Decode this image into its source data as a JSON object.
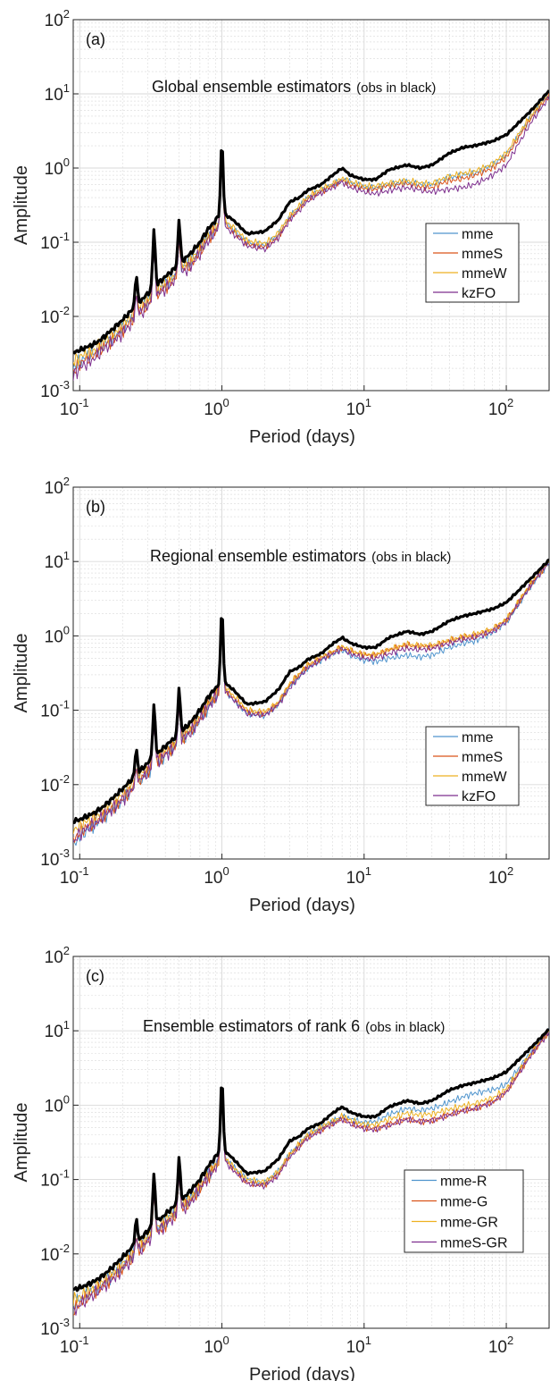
{
  "colors": {
    "obs": "#000000",
    "series1": "#4f94cd",
    "series2": "#d95319",
    "series3": "#edb120",
    "series4": "#7e2f8e",
    "grid": "#d9d9d9"
  },
  "chart_data": [
    {
      "type": "line",
      "tag": "(a)",
      "title": "Global ensemble estimators",
      "title_note": "(obs in black)",
      "xlabel": "Period (days)",
      "ylabel": "Amplitude",
      "xscale": "log",
      "yscale": "log",
      "xlim": [
        0.09,
        200
      ],
      "ylim": [
        0.001,
        100
      ],
      "x_ticks": [
        {
          "base": "10",
          "exp": "-1"
        },
        {
          "base": "10",
          "exp": "0"
        },
        {
          "base": "10",
          "exp": "1"
        },
        {
          "base": "10",
          "exp": "2"
        }
      ],
      "y_ticks": [
        {
          "base": "10",
          "exp": "-3"
        },
        {
          "base": "10",
          "exp": "-2"
        },
        {
          "base": "10",
          "exp": "-1"
        },
        {
          "base": "10",
          "exp": "0"
        },
        {
          "base": "10",
          "exp": "1"
        },
        {
          "base": "10",
          "exp": "2"
        }
      ],
      "grid": true,
      "legend": "right",
      "obs": {
        "x": [
          0.09,
          0.1,
          0.125,
          0.143,
          0.167,
          0.2,
          0.25,
          0.333,
          0.5,
          0.6,
          0.7,
          0.8,
          1.0,
          1.2,
          1.5,
          2,
          2.5,
          3,
          3.5,
          4,
          5,
          6,
          7,
          8,
          10,
          12,
          15,
          20,
          25,
          30,
          40,
          50,
          60,
          80,
          100,
          150,
          200
        ],
        "y": [
          0.0033,
          0.0035,
          0.0042,
          0.005,
          0.0065,
          0.009,
          0.014,
          0.025,
          0.05,
          0.07,
          0.1,
          0.15,
          0.25,
          0.2,
          0.13,
          0.14,
          0.2,
          0.35,
          0.4,
          0.5,
          0.6,
          0.8,
          1.0,
          0.8,
          0.7,
          0.7,
          0.95,
          1.1,
          1.0,
          1.1,
          1.6,
          1.9,
          2.0,
          2.3,
          2.8,
          6.0,
          11.0
        ]
      },
      "obs_peaks": [
        {
          "x": 0.25,
          "y": 0.035
        },
        {
          "x": 0.333,
          "y": 0.15
        },
        {
          "x": 0.5,
          "y": 0.2
        },
        {
          "x": 1.0,
          "y": 2.3
        }
      ],
      "series": [
        {
          "name": "mme",
          "color_key": "series1",
          "y": [
            0.002,
            0.0025,
            0.0032,
            0.004,
            0.005,
            0.007,
            0.011,
            0.02,
            0.04,
            0.055,
            0.08,
            0.12,
            0.2,
            0.15,
            0.1,
            0.09,
            0.13,
            0.22,
            0.3,
            0.4,
            0.5,
            0.6,
            0.7,
            0.65,
            0.55,
            0.55,
            0.6,
            0.65,
            0.6,
            0.6,
            0.75,
            0.8,
            0.85,
            1.1,
            1.5,
            5.0,
            10.0
          ]
        },
        {
          "name": "mmeS",
          "color_key": "series2",
          "y": [
            0.0018,
            0.0023,
            0.003,
            0.0037,
            0.0047,
            0.0065,
            0.01,
            0.018,
            0.037,
            0.05,
            0.075,
            0.11,
            0.19,
            0.14,
            0.095,
            0.085,
            0.12,
            0.21,
            0.28,
            0.38,
            0.48,
            0.58,
            0.68,
            0.6,
            0.52,
            0.52,
            0.58,
            0.62,
            0.55,
            0.55,
            0.68,
            0.72,
            0.8,
            1.0,
            1.4,
            4.8,
            9.5
          ]
        },
        {
          "name": "mmeW",
          "color_key": "series3",
          "y": [
            0.0025,
            0.0028,
            0.0035,
            0.0043,
            0.0055,
            0.0075,
            0.012,
            0.021,
            0.042,
            0.058,
            0.085,
            0.125,
            0.21,
            0.16,
            0.105,
            0.095,
            0.135,
            0.23,
            0.31,
            0.41,
            0.52,
            0.62,
            0.72,
            0.66,
            0.57,
            0.57,
            0.63,
            0.68,
            0.62,
            0.62,
            0.78,
            0.85,
            0.9,
            1.15,
            1.6,
            5.2,
            10.5
          ]
        },
        {
          "name": "kzFO",
          "color_key": "series4",
          "y": [
            0.0016,
            0.002,
            0.0027,
            0.0034,
            0.0044,
            0.006,
            0.0095,
            0.017,
            0.035,
            0.048,
            0.07,
            0.105,
            0.18,
            0.13,
            0.09,
            0.08,
            0.115,
            0.2,
            0.27,
            0.36,
            0.46,
            0.55,
            0.65,
            0.55,
            0.48,
            0.45,
            0.5,
            0.55,
            0.5,
            0.48,
            0.52,
            0.55,
            0.6,
            0.8,
            1.1,
            4.2,
            9.0
          ]
        }
      ]
    },
    {
      "type": "line",
      "tag": "(b)",
      "title": "Regional ensemble estimators",
      "title_note": "(obs in black)",
      "xlabel": "Period (days)",
      "ylabel": "Amplitude",
      "xscale": "log",
      "yscale": "log",
      "xlim": [
        0.09,
        200
      ],
      "ylim": [
        0.001,
        100
      ],
      "x_ticks": [
        {
          "base": "10",
          "exp": "-1"
        },
        {
          "base": "10",
          "exp": "0"
        },
        {
          "base": "10",
          "exp": "1"
        },
        {
          "base": "10",
          "exp": "2"
        }
      ],
      "y_ticks": [
        {
          "base": "10",
          "exp": "-3"
        },
        {
          "base": "10",
          "exp": "-2"
        },
        {
          "base": "10",
          "exp": "-1"
        },
        {
          "base": "10",
          "exp": "0"
        },
        {
          "base": "10",
          "exp": "1"
        },
        {
          "base": "10",
          "exp": "2"
        }
      ],
      "grid": true,
      "legend": "lower-right",
      "obs": {
        "x": [
          0.09,
          0.1,
          0.125,
          0.143,
          0.167,
          0.2,
          0.25,
          0.333,
          0.5,
          0.6,
          0.7,
          0.8,
          1.0,
          1.2,
          1.5,
          2,
          2.5,
          3,
          3.5,
          4,
          5,
          6,
          7,
          8,
          10,
          12,
          15,
          20,
          25,
          30,
          40,
          50,
          60,
          80,
          100,
          150,
          200
        ],
        "y": [
          0.0032,
          0.0034,
          0.0041,
          0.0049,
          0.0063,
          0.0088,
          0.0135,
          0.024,
          0.048,
          0.068,
          0.1,
          0.15,
          0.25,
          0.19,
          0.12,
          0.13,
          0.19,
          0.33,
          0.38,
          0.48,
          0.58,
          0.78,
          0.95,
          0.8,
          0.7,
          0.7,
          0.95,
          1.15,
          1.05,
          1.15,
          1.6,
          1.85,
          2.0,
          2.3,
          2.8,
          6.0,
          10.5
        ]
      },
      "obs_peaks": [
        {
          "x": 0.25,
          "y": 0.03
        },
        {
          "x": 0.333,
          "y": 0.12
        },
        {
          "x": 0.5,
          "y": 0.2
        },
        {
          "x": 1.0,
          "y": 2.3
        }
      ],
      "series": [
        {
          "name": "mme",
          "color_key": "series1",
          "y": [
            0.0015,
            0.002,
            0.0028,
            0.0035,
            0.0045,
            0.0062,
            0.0098,
            0.018,
            0.037,
            0.05,
            0.075,
            0.11,
            0.2,
            0.14,
            0.09,
            0.085,
            0.12,
            0.21,
            0.28,
            0.37,
            0.47,
            0.57,
            0.65,
            0.55,
            0.47,
            0.45,
            0.5,
            0.55,
            0.52,
            0.55,
            0.7,
            0.8,
            0.85,
            1.1,
            1.5,
            4.8,
            9.5
          ]
        },
        {
          "name": "mmeS",
          "color_key": "series2",
          "y": [
            0.0018,
            0.0023,
            0.003,
            0.0037,
            0.0047,
            0.0065,
            0.01,
            0.019,
            0.038,
            0.052,
            0.078,
            0.115,
            0.21,
            0.15,
            0.095,
            0.09,
            0.125,
            0.22,
            0.3,
            0.39,
            0.5,
            0.6,
            0.7,
            0.62,
            0.55,
            0.55,
            0.65,
            0.75,
            0.72,
            0.72,
            0.85,
            0.95,
            1.0,
            1.2,
            1.6,
            5.0,
            10.0
          ]
        },
        {
          "name": "mmeW",
          "color_key": "series3",
          "y": [
            0.0025,
            0.0028,
            0.0035,
            0.0043,
            0.0055,
            0.0075,
            0.012,
            0.021,
            0.042,
            0.058,
            0.085,
            0.125,
            0.22,
            0.16,
            0.1,
            0.095,
            0.13,
            0.23,
            0.31,
            0.41,
            0.52,
            0.62,
            0.72,
            0.64,
            0.56,
            0.56,
            0.66,
            0.77,
            0.74,
            0.75,
            0.88,
            0.98,
            1.05,
            1.25,
            1.65,
            5.2,
            10.2
          ]
        },
        {
          "name": "kzFO",
          "color_key": "series4",
          "y": [
            0.0017,
            0.0022,
            0.0029,
            0.0036,
            0.0046,
            0.0063,
            0.0098,
            0.018,
            0.036,
            0.05,
            0.075,
            0.11,
            0.2,
            0.14,
            0.09,
            0.085,
            0.12,
            0.2,
            0.28,
            0.37,
            0.48,
            0.58,
            0.67,
            0.58,
            0.5,
            0.5,
            0.58,
            0.68,
            0.65,
            0.68,
            0.8,
            0.9,
            0.95,
            1.15,
            1.55,
            4.9,
            9.8
          ]
        }
      ]
    },
    {
      "type": "line",
      "tag": "(c)",
      "title": "Ensemble estimators of rank 6",
      "title_note": "(obs in black)",
      "xlabel": "Period (days)",
      "ylabel": "Amplitude",
      "xscale": "log",
      "yscale": "log",
      "xlim": [
        0.09,
        200
      ],
      "ylim": [
        0.001,
        100
      ],
      "x_ticks": [
        {
          "base": "10",
          "exp": "-1"
        },
        {
          "base": "10",
          "exp": "0"
        },
        {
          "base": "10",
          "exp": "1"
        },
        {
          "base": "10",
          "exp": "2"
        }
      ],
      "y_ticks": [
        {
          "base": "10",
          "exp": "-3"
        },
        {
          "base": "10",
          "exp": "-2"
        },
        {
          "base": "10",
          "exp": "-1"
        },
        {
          "base": "10",
          "exp": "0"
        },
        {
          "base": "10",
          "exp": "1"
        },
        {
          "base": "10",
          "exp": "2"
        }
      ],
      "grid": true,
      "legend": "lower-right",
      "obs": {
        "x": [
          0.09,
          0.1,
          0.125,
          0.143,
          0.167,
          0.2,
          0.25,
          0.333,
          0.5,
          0.6,
          0.7,
          0.8,
          1.0,
          1.2,
          1.5,
          2,
          2.5,
          3,
          3.5,
          4,
          5,
          6,
          7,
          8,
          10,
          12,
          15,
          20,
          25,
          30,
          40,
          50,
          60,
          80,
          100,
          150,
          200
        ],
        "y": [
          0.0033,
          0.0035,
          0.0042,
          0.005,
          0.0064,
          0.009,
          0.014,
          0.025,
          0.05,
          0.07,
          0.1,
          0.15,
          0.26,
          0.19,
          0.12,
          0.13,
          0.19,
          0.33,
          0.38,
          0.48,
          0.58,
          0.78,
          0.95,
          0.8,
          0.7,
          0.7,
          0.95,
          1.15,
          1.05,
          1.15,
          1.6,
          1.85,
          2.0,
          2.3,
          2.8,
          6.0,
          10.5
        ]
      },
      "obs_peaks": [
        {
          "x": 0.25,
          "y": 0.03
        },
        {
          "x": 0.333,
          "y": 0.12
        },
        {
          "x": 0.5,
          "y": 0.2
        },
        {
          "x": 1.0,
          "y": 2.3
        }
      ],
      "series": [
        {
          "name": "mme-R",
          "color_key": "series1",
          "y": [
            0.002,
            0.0025,
            0.0032,
            0.004,
            0.005,
            0.007,
            0.011,
            0.02,
            0.04,
            0.055,
            0.08,
            0.12,
            0.21,
            0.15,
            0.1,
            0.09,
            0.13,
            0.22,
            0.3,
            0.4,
            0.5,
            0.6,
            0.7,
            0.65,
            0.58,
            0.6,
            0.75,
            0.9,
            0.85,
            0.9,
            1.1,
            1.3,
            1.45,
            1.6,
            1.9,
            5.2,
            10.0
          ]
        },
        {
          "name": "mme-G",
          "color_key": "series2",
          "y": [
            0.0017,
            0.0022,
            0.003,
            0.0037,
            0.0047,
            0.0065,
            0.01,
            0.018,
            0.037,
            0.05,
            0.076,
            0.11,
            0.2,
            0.14,
            0.09,
            0.085,
            0.12,
            0.21,
            0.28,
            0.37,
            0.47,
            0.57,
            0.66,
            0.58,
            0.5,
            0.48,
            0.55,
            0.65,
            0.6,
            0.62,
            0.75,
            0.85,
            0.9,
            1.1,
            1.5,
            4.9,
            9.7
          ]
        },
        {
          "name": "mme-GR",
          "color_key": "series3",
          "y": [
            0.0024,
            0.0027,
            0.0034,
            0.0042,
            0.0053,
            0.0073,
            0.0115,
            0.021,
            0.041,
            0.056,
            0.082,
            0.122,
            0.21,
            0.15,
            0.1,
            0.092,
            0.13,
            0.22,
            0.3,
            0.4,
            0.51,
            0.61,
            0.71,
            0.63,
            0.55,
            0.55,
            0.65,
            0.78,
            0.74,
            0.76,
            0.88,
            0.98,
            1.05,
            1.25,
            1.65,
            5.1,
            10.1
          ]
        },
        {
          "name": "mmeS-GR",
          "color_key": "series4",
          "y": [
            0.0016,
            0.0021,
            0.0028,
            0.0035,
            0.0045,
            0.0062,
            0.0097,
            0.018,
            0.036,
            0.049,
            0.074,
            0.108,
            0.19,
            0.135,
            0.088,
            0.082,
            0.115,
            0.2,
            0.27,
            0.36,
            0.46,
            0.56,
            0.65,
            0.56,
            0.48,
            0.47,
            0.54,
            0.64,
            0.6,
            0.62,
            0.74,
            0.84,
            0.9,
            1.1,
            1.48,
            4.8,
            9.6
          ]
        }
      ]
    }
  ]
}
